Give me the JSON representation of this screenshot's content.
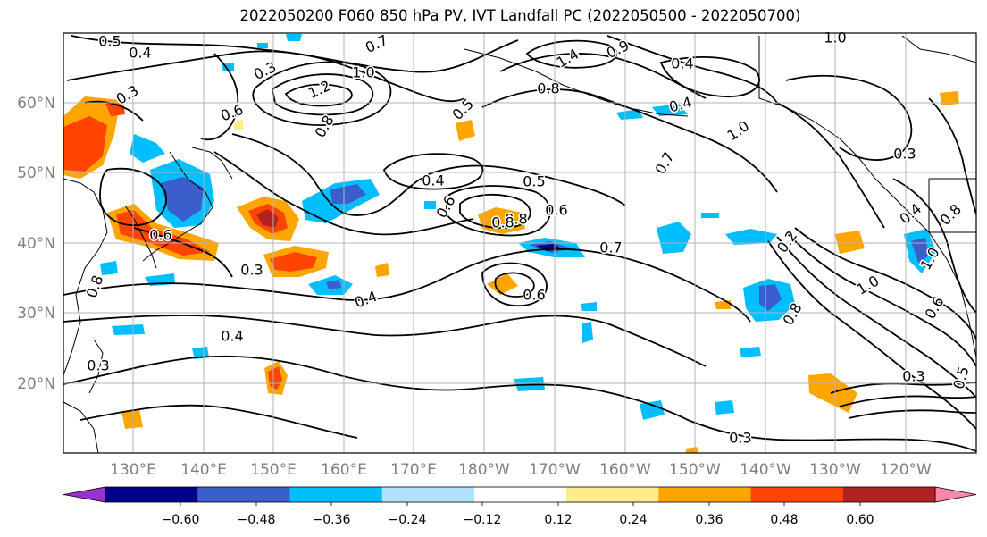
{
  "title": "2022050200 F060 850 hPa PV, IVT Landfall PC (2022050500 - 2022050700)",
  "map": {
    "lat_labels": [
      "60°N",
      "50°N",
      "40°N",
      "30°N",
      "20°N"
    ],
    "lon_labels": [
      "130°E",
      "140°E",
      "150°E",
      "160°E",
      "170°E",
      "180°W",
      "170°W",
      "160°W",
      "150°W",
      "140°W",
      "130°W",
      "120°W"
    ],
    "contour_labels": [
      "0.5",
      "0.4",
      "0.7",
      "1.0",
      "1.4",
      "0.9",
      "1.0",
      "0.4",
      "0.3",
      "1.2",
      "0.8",
      "0.6",
      "0.8",
      "0.5",
      "0.3",
      "0.4",
      "0.5",
      "0.6",
      "0.7",
      "0.6",
      "0.3",
      "0.4",
      "0.6",
      "0.8",
      "0.7",
      "1.0",
      "0.8",
      "0.6",
      "0.3",
      "0.4",
      "0.3",
      "0.4",
      "0.8",
      "1.0",
      "0.6",
      "0.8",
      "0.2",
      "1.0",
      "0.3",
      "0.5",
      "0.4",
      "0.3",
      "0.8"
    ]
  },
  "colorbar": {
    "ticks": [
      "−0.60",
      "−0.48",
      "−0.36",
      "−0.24",
      "−0.12",
      "0.12",
      "0.24",
      "0.36",
      "0.48",
      "0.60"
    ],
    "colors": [
      "#9932cc",
      "#00008b",
      "#3a5fcd",
      "#00bfff",
      "#b0e2ff",
      "#ffffff",
      "#ffec8b",
      "#ffa500",
      "#ff4500",
      "#b22222",
      "#ff88aa"
    ]
  }
}
